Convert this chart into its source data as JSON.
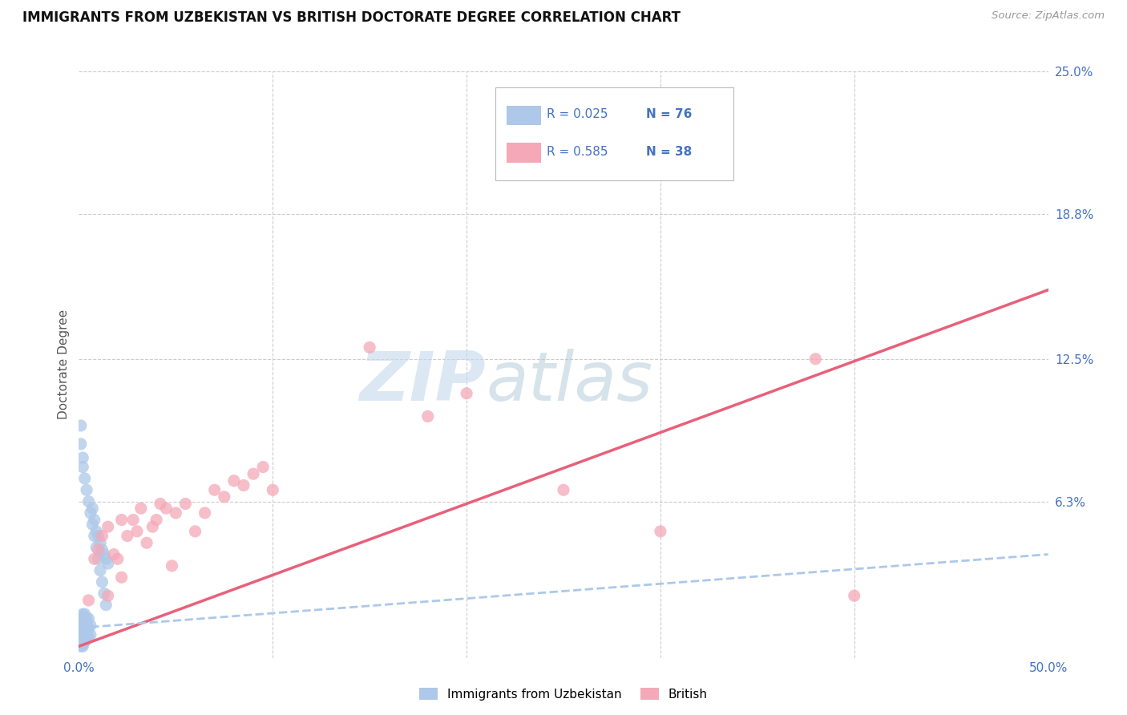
{
  "title": "IMMIGRANTS FROM UZBEKISTAN VS BRITISH DOCTORATE DEGREE CORRELATION CHART",
  "source": "Source: ZipAtlas.com",
  "ylabel": "Doctorate Degree",
  "xlim": [
    0.0,
    0.5
  ],
  "ylim": [
    -0.005,
    0.25
  ],
  "xtick_positions": [
    0.0,
    0.1,
    0.2,
    0.3,
    0.4,
    0.5
  ],
  "xtick_labels": [
    "0.0%",
    "",
    "",
    "",
    "",
    "50.0%"
  ],
  "ytick_positions_right": [
    0.25,
    0.188,
    0.125,
    0.063,
    0.0
  ],
  "ytick_labels_right": [
    "25.0%",
    "18.8%",
    "12.5%",
    "6.3%",
    ""
  ],
  "legend_label1": "Immigrants from Uzbekistan",
  "legend_label2": "British",
  "color_uzbek": "#adc8e8",
  "color_british": "#f4a8b8",
  "color_uzbek_line": "#adc8e8",
  "color_british_line": "#e8607a",
  "color_axis_label": "#4472c4",
  "watermark_zip": "ZIP",
  "watermark_atlas": "atlas",
  "scatter_uzbek_x": [
    0.001,
    0.001,
    0.001,
    0.001,
    0.001,
    0.001,
    0.001,
    0.001,
    0.001,
    0.001,
    0.001,
    0.001,
    0.001,
    0.001,
    0.001,
    0.001,
    0.001,
    0.001,
    0.001,
    0.001,
    0.002,
    0.002,
    0.002,
    0.002,
    0.002,
    0.002,
    0.002,
    0.002,
    0.002,
    0.002,
    0.002,
    0.002,
    0.002,
    0.002,
    0.002,
    0.003,
    0.003,
    0.003,
    0.003,
    0.003,
    0.003,
    0.003,
    0.004,
    0.004,
    0.004,
    0.004,
    0.005,
    0.005,
    0.005,
    0.006,
    0.006,
    0.007,
    0.008,
    0.009,
    0.01,
    0.011,
    0.012,
    0.013,
    0.014,
    0.015,
    0.001,
    0.001,
    0.002,
    0.002,
    0.003,
    0.004,
    0.005,
    0.006,
    0.007,
    0.008,
    0.009,
    0.01,
    0.011,
    0.012,
    0.013,
    0.014
  ],
  "scatter_uzbek_y": [
    0.0,
    0.001,
    0.001,
    0.002,
    0.002,
    0.003,
    0.003,
    0.004,
    0.004,
    0.005,
    0.005,
    0.006,
    0.006,
    0.007,
    0.007,
    0.008,
    0.008,
    0.009,
    0.009,
    0.01,
    0.0,
    0.001,
    0.002,
    0.003,
    0.004,
    0.005,
    0.006,
    0.007,
    0.008,
    0.009,
    0.01,
    0.011,
    0.012,
    0.013,
    0.014,
    0.002,
    0.004,
    0.006,
    0.008,
    0.01,
    0.012,
    0.014,
    0.003,
    0.006,
    0.009,
    0.012,
    0.004,
    0.008,
    0.012,
    0.005,
    0.009,
    0.06,
    0.055,
    0.05,
    0.048,
    0.045,
    0.042,
    0.04,
    0.038,
    0.036,
    0.096,
    0.088,
    0.082,
    0.078,
    0.073,
    0.068,
    0.063,
    0.058,
    0.053,
    0.048,
    0.043,
    0.038,
    0.033,
    0.028,
    0.023,
    0.018
  ],
  "scatter_british_x": [
    0.005,
    0.008,
    0.01,
    0.012,
    0.015,
    0.015,
    0.018,
    0.02,
    0.022,
    0.022,
    0.025,
    0.028,
    0.03,
    0.032,
    0.035,
    0.038,
    0.04,
    0.042,
    0.045,
    0.048,
    0.05,
    0.055,
    0.06,
    0.065,
    0.07,
    0.075,
    0.08,
    0.085,
    0.09,
    0.095,
    0.1,
    0.15,
    0.18,
    0.2,
    0.25,
    0.3,
    0.38,
    0.4
  ],
  "scatter_british_y": [
    0.02,
    0.038,
    0.042,
    0.048,
    0.022,
    0.052,
    0.04,
    0.038,
    0.055,
    0.03,
    0.048,
    0.055,
    0.05,
    0.06,
    0.045,
    0.052,
    0.055,
    0.062,
    0.06,
    0.035,
    0.058,
    0.062,
    0.05,
    0.058,
    0.068,
    0.065,
    0.072,
    0.07,
    0.075,
    0.078,
    0.068,
    0.13,
    0.1,
    0.11,
    0.068,
    0.05,
    0.125,
    0.022
  ],
  "british_line_x0": 0.0,
  "british_line_y0": 0.0,
  "british_line_x1": 0.5,
  "british_line_y1": 0.155,
  "uzbek_line_x0": 0.0,
  "uzbek_line_y0": 0.008,
  "uzbek_line_x1": 0.5,
  "uzbek_line_y1": 0.04
}
